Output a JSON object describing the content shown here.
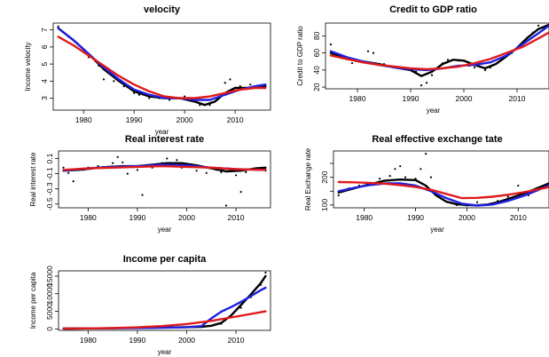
{
  "colors": {
    "black": "#000000",
    "blue": "#1f1fe0",
    "red": "#e01a1a"
  },
  "chart_data": [
    {
      "type": "line",
      "title": "velocity",
      "xlabel": "year",
      "ylabel": "Income velocity",
      "xlim": [
        1974,
        2017
      ],
      "ylim": [
        2.3,
        7.4
      ],
      "xticks": [
        1980,
        1990,
        2000,
        2010
      ],
      "yticks": [
        3,
        4,
        5,
        6,
        7
      ],
      "points": [
        [
          1975,
          7.2
        ],
        [
          1977,
          6.6
        ],
        [
          1979,
          5.9
        ],
        [
          1981,
          5.4
        ],
        [
          1983,
          4.9
        ],
        [
          1984,
          4.1
        ],
        [
          1986,
          4.0
        ],
        [
          1988,
          3.7
        ],
        [
          1990,
          3.3
        ],
        [
          1991,
          3.2
        ],
        [
          1993,
          3.0
        ],
        [
          1995,
          3.0
        ],
        [
          1997,
          2.9
        ],
        [
          1999,
          3.0
        ],
        [
          2000,
          3.1
        ],
        [
          2002,
          2.8
        ],
        [
          2003,
          2.6
        ],
        [
          2005,
          2.6
        ],
        [
          2007,
          3.1
        ],
        [
          2008,
          3.9
        ],
        [
          2009,
          4.1
        ],
        [
          2011,
          3.7
        ],
        [
          2013,
          3.8
        ],
        [
          2015,
          3.6
        ]
      ],
      "series": [
        {
          "color": "black",
          "x": [
            1975,
            1978,
            1981,
            1984,
            1987,
            1990,
            1993,
            1996,
            1999,
            2002,
            2004,
            2006,
            2008,
            2010,
            2013,
            2016
          ],
          "y": [
            7.1,
            6.4,
            5.6,
            4.7,
            4.0,
            3.4,
            3.1,
            3.0,
            3.0,
            2.8,
            2.6,
            2.8,
            3.3,
            3.6,
            3.6,
            3.7
          ]
        },
        {
          "color": "blue",
          "x": [
            1975,
            1978,
            1981,
            1984,
            1987,
            1990,
            1993,
            1996,
            1999,
            2002,
            2005,
            2008,
            2011,
            2014,
            2016
          ],
          "y": [
            7.1,
            6.4,
            5.6,
            4.8,
            4.1,
            3.5,
            3.2,
            3.0,
            3.0,
            2.9,
            2.9,
            3.2,
            3.5,
            3.7,
            3.8
          ]
        },
        {
          "color": "red",
          "x": [
            1975,
            1978,
            1981,
            1984,
            1987,
            1990,
            1993,
            1996,
            1999,
            2002,
            2005,
            2008,
            2011,
            2014,
            2016
          ],
          "y": [
            6.6,
            6.1,
            5.5,
            4.9,
            4.3,
            3.8,
            3.4,
            3.1,
            3.0,
            3.0,
            3.1,
            3.3,
            3.5,
            3.6,
            3.6
          ]
        }
      ]
    },
    {
      "type": "line",
      "title": "Credit to GDP ratio",
      "xlabel": "year",
      "ylabel": "Credit to GDP ratio",
      "xlim": [
        1974,
        2016
      ],
      "ylim": [
        18,
        95
      ],
      "xticks": [
        1980,
        1990,
        2000,
        2010
      ],
      "yticks": [
        20,
        40,
        60,
        80
      ],
      "points": [
        [
          1975,
          70
        ],
        [
          1977,
          55
        ],
        [
          1979,
          48
        ],
        [
          1981,
          50
        ],
        [
          1982,
          62
        ],
        [
          1983,
          60
        ],
        [
          1985,
          47
        ],
        [
          1987,
          44
        ],
        [
          1989,
          42
        ],
        [
          1991,
          38
        ],
        [
          1992,
          22
        ],
        [
          1993,
          25
        ],
        [
          1994,
          34
        ],
        [
          1996,
          48
        ],
        [
          1997,
          52
        ],
        [
          1999,
          51
        ],
        [
          2001,
          45
        ],
        [
          2002,
          43
        ],
        [
          2004,
          40
        ],
        [
          2005,
          43
        ],
        [
          2007,
          52
        ],
        [
          2009,
          60
        ],
        [
          2011,
          72
        ],
        [
          2013,
          84
        ],
        [
          2014,
          92
        ]
      ],
      "series": [
        {
          "color": "black",
          "x": [
            1975,
            1978,
            1981,
            1984,
            1987,
            1990,
            1992,
            1994,
            1996,
            1998,
            2000,
            2002,
            2004,
            2006,
            2008,
            2010,
            2012,
            2014,
            2016
          ],
          "y": [
            60,
            53,
            50,
            47,
            43,
            40,
            33,
            38,
            47,
            52,
            51,
            46,
            42,
            47,
            56,
            66,
            78,
            88,
            93
          ]
        },
        {
          "color": "blue",
          "x": [
            1975,
            1978,
            1981,
            1984,
            1987,
            1990,
            1993,
            1996,
            1999,
            2002,
            2005,
            2008,
            2011,
            2014,
            2016
          ],
          "y": [
            62,
            55,
            50,
            46,
            43,
            41,
            40,
            42,
            45,
            46,
            49,
            57,
            70,
            83,
            92
          ]
        },
        {
          "color": "red",
          "x": [
            1975,
            1978,
            1981,
            1984,
            1987,
            1990,
            1993,
            1996,
            1999,
            2002,
            2005,
            2008,
            2011,
            2014,
            2016
          ],
          "y": [
            57,
            53,
            49,
            46,
            44,
            42,
            41,
            42,
            44,
            48,
            53,
            60,
            67,
            77,
            84
          ]
        }
      ]
    },
    {
      "type": "line",
      "title": "Real interest rate",
      "xlabel": "year",
      "ylabel": "Real interest rate",
      "xlim": [
        1974,
        2017
      ],
      "ylim": [
        -0.55,
        0.2
      ],
      "xticks": [
        1980,
        1990,
        2000,
        2010
      ],
      "yticks": [
        0.1,
        -0.1,
        -0.3,
        -0.5
      ],
      "ytick_labels": [
        "0.1",
        "-0.1",
        "-0.3",
        "-0.5"
      ],
      "points": [
        [
          1975,
          -0.02
        ],
        [
          1976,
          -0.09
        ],
        [
          1977,
          -0.2
        ],
        [
          1979,
          -0.05
        ],
        [
          1980,
          -0.02
        ],
        [
          1982,
          0.0
        ],
        [
          1983,
          -0.01
        ],
        [
          1985,
          0.04
        ],
        [
          1986,
          0.12
        ],
        [
          1987,
          0.05
        ],
        [
          1988,
          -0.1
        ],
        [
          1990,
          -0.05
        ],
        [
          1991,
          -0.38
        ],
        [
          1993,
          -0.02
        ],
        [
          1995,
          0.04
        ],
        [
          1996,
          0.1
        ],
        [
          1998,
          0.08
        ],
        [
          1999,
          -0.02
        ],
        [
          2001,
          0.02
        ],
        [
          2002,
          -0.06
        ],
        [
          2004,
          -0.09
        ],
        [
          2006,
          -0.05
        ],
        [
          2007,
          -0.08
        ],
        [
          2008,
          -0.52
        ],
        [
          2010,
          -0.12
        ],
        [
          2011,
          -0.34
        ],
        [
          2012,
          -0.08
        ],
        [
          2014,
          -0.04
        ],
        [
          2016,
          -0.06
        ]
      ],
      "series": [
        {
          "color": "black",
          "x": [
            1975,
            1978,
            1981,
            1984,
            1987,
            1990,
            1993,
            1996,
            1999,
            2002,
            2005,
            2008,
            2011,
            2014,
            2016
          ],
          "y": [
            -0.06,
            -0.05,
            -0.03,
            -0.01,
            0.0,
            0.0,
            0.02,
            0.04,
            0.04,
            0.01,
            -0.03,
            -0.07,
            -0.06,
            -0.03,
            -0.02
          ]
        },
        {
          "color": "blue",
          "x": [
            1975,
            1980,
            1985,
            1990,
            1995,
            2000,
            2005,
            2010,
            2016
          ],
          "y": [
            -0.06,
            -0.03,
            -0.01,
            0.0,
            0.02,
            0.01,
            -0.02,
            -0.04,
            -0.05
          ]
        },
        {
          "color": "red",
          "x": [
            1975,
            1980,
            1985,
            1990,
            1995,
            2000,
            2005,
            2010,
            2016
          ],
          "y": [
            -0.05,
            -0.03,
            -0.02,
            -0.01,
            0.0,
            -0.01,
            -0.02,
            -0.04,
            -0.05
          ]
        }
      ]
    },
    {
      "type": "line",
      "title": "Real effective exchange tate",
      "xlabel": "year",
      "ylabel": "Real Exchange rate",
      "xlim": [
        1974,
        2016
      ],
      "ylim": [
        90,
        295
      ],
      "xticks": [
        1980,
        1990,
        2000,
        2010
      ],
      "yticks": [
        100,
        150,
        200,
        250
      ],
      "ytick_labels": [
        "100",
        "",
        "200",
        ""
      ],
      "points": [
        [
          1975,
          135
        ],
        [
          1977,
          160
        ],
        [
          1979,
          170
        ],
        [
          1981,
          175
        ],
        [
          1983,
          195
        ],
        [
          1985,
          205
        ],
        [
          1986,
          230
        ],
        [
          1987,
          240
        ],
        [
          1988,
          200
        ],
        [
          1990,
          195
        ],
        [
          1991,
          230
        ],
        [
          1992,
          285
        ],
        [
          1993,
          200
        ],
        [
          1994,
          150
        ],
        [
          1996,
          125
        ],
        [
          1997,
          108
        ],
        [
          1998,
          100
        ],
        [
          2000,
          98
        ],
        [
          2002,
          110
        ],
        [
          2004,
          100
        ],
        [
          2006,
          115
        ],
        [
          2008,
          130
        ],
        [
          2010,
          170
        ],
        [
          2012,
          135
        ],
        [
          2014,
          160
        ],
        [
          2016,
          175
        ]
      ],
      "series": [
        {
          "color": "black",
          "x": [
            1975,
            1978,
            1981,
            1984,
            1987,
            1990,
            1992,
            1994,
            1996,
            1998,
            2000,
            2002,
            2004,
            2006,
            2008,
            2010,
            2012,
            2014,
            2016
          ],
          "y": [
            145,
            160,
            175,
            188,
            192,
            190,
            170,
            135,
            112,
            103,
            100,
            99,
            102,
            110,
            122,
            135,
            148,
            163,
            178
          ]
        },
        {
          "color": "blue",
          "x": [
            1975,
            1978,
            1981,
            1984,
            1987,
            1990,
            1993,
            1996,
            1999,
            2002,
            2005,
            2008,
            2011,
            2014,
            2016
          ],
          "y": [
            150,
            162,
            172,
            178,
            178,
            170,
            150,
            125,
            105,
            98,
            102,
            115,
            133,
            155,
            172
          ]
        },
        {
          "color": "red",
          "x": [
            1975,
            1978,
            1981,
            1984,
            1987,
            1990,
            1993,
            1996,
            1999,
            2002,
            2005,
            2008,
            2011,
            2014,
            2016
          ],
          "y": [
            183,
            182,
            180,
            177,
            172,
            165,
            155,
            140,
            125,
            126,
            130,
            137,
            146,
            157,
            165
          ]
        }
      ]
    },
    {
      "type": "line",
      "title": "Income per capita",
      "xlabel": "year",
      "ylabel": "Income per capita",
      "xlim": [
        1974,
        2017
      ],
      "ylim": [
        -400,
        16500
      ],
      "xticks": [
        1980,
        1990,
        2000,
        2010
      ],
      "yticks": [
        0,
        5000,
        10000,
        15000
      ],
      "ytick_labels": [
        "0",
        "5000",
        "10000",
        "15000"
      ],
      "points": [
        [
          1975,
          100
        ],
        [
          1980,
          150
        ],
        [
          1985,
          200
        ],
        [
          1990,
          300
        ],
        [
          1995,
          400
        ],
        [
          2000,
          500
        ],
        [
          2003,
          600
        ],
        [
          2005,
          900
        ],
        [
          2007,
          1500
        ],
        [
          2009,
          3500
        ],
        [
          2011,
          6000
        ],
        [
          2013,
          9000
        ],
        [
          2015,
          12500
        ],
        [
          2016,
          16000
        ]
      ],
      "series": [
        {
          "color": "black",
          "x": [
            1975,
            1980,
            1985,
            1990,
            1995,
            2000,
            2003,
            2005,
            2007,
            2009,
            2011,
            2013,
            2015,
            2016
          ],
          "y": [
            100,
            150,
            200,
            300,
            400,
            500,
            600,
            900,
            1700,
            3800,
            6800,
            9800,
            13000,
            15000
          ]
        },
        {
          "color": "blue",
          "x": [
            1975,
            1980,
            1985,
            1990,
            1995,
            2000,
            2003,
            2005,
            2007,
            2009,
            2011,
            2013,
            2015,
            2016
          ],
          "y": [
            100,
            150,
            200,
            250,
            350,
            500,
            800,
            3000,
            4900,
            6200,
            7700,
            9300,
            11000,
            11700
          ]
        },
        {
          "color": "red",
          "x": [
            1975,
            1980,
            1985,
            1990,
            1995,
            2000,
            2005,
            2010,
            2016
          ],
          "y": [
            100,
            150,
            250,
            450,
            800,
            1400,
            2300,
            3500,
            5000
          ]
        }
      ]
    }
  ]
}
